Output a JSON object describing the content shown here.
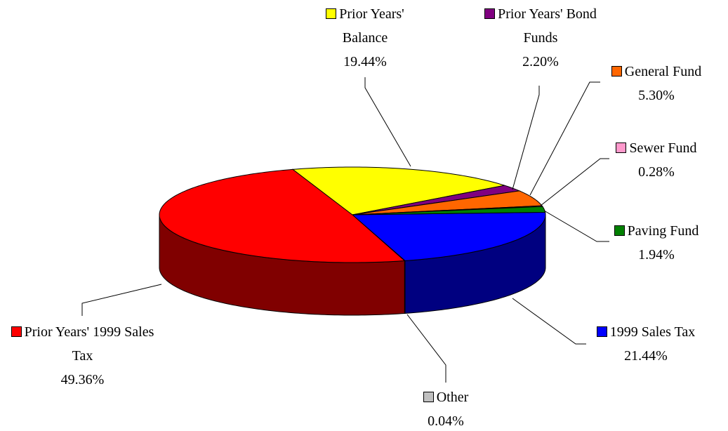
{
  "chart_data": {
    "type": "pie",
    "categories": [
      "1999 Sales Tax",
      "Other",
      "Prior Years' 1999 Sales Tax",
      "Prior Years' Balance",
      "Prior Years' Bond Funds",
      "General Fund",
      "Sewer Fund",
      "Paving Fund"
    ],
    "values": [
      21.44,
      0.04,
      49.36,
      19.44,
      2.2,
      5.3,
      0.28,
      1.94
    ],
    "value_labels": [
      "21.44%",
      "0.04%",
      "49.36%",
      "19.44%",
      "2.20%",
      "5.30%",
      "0.28%",
      "1.94%"
    ],
    "colors": [
      "#0000ff",
      "#c0c0c0",
      "#ff0000",
      "#ffff00",
      "#800080",
      "#ff6600",
      "#ff99cc",
      "#008000"
    ]
  }
}
